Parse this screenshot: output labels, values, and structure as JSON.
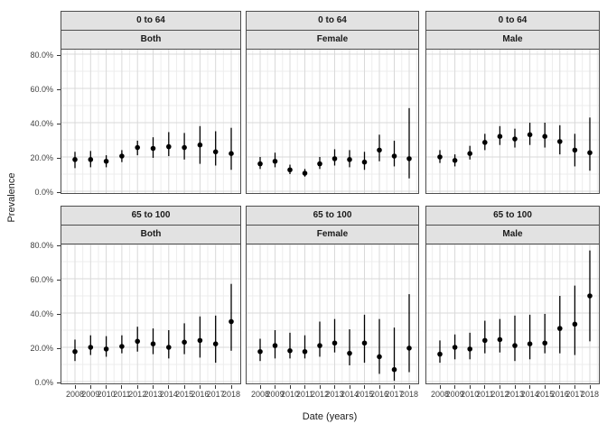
{
  "axis": {
    "y_title": "Prevalence",
    "x_title": "Date (years)",
    "y_tick_values": [
      0,
      20,
      40,
      60,
      80
    ],
    "y_tick_labels": [
      "0.0%",
      "20.0%",
      "40.0%",
      "60.0%",
      "80.0%"
    ],
    "y_minor_values": [
      10,
      30,
      50,
      70
    ]
  },
  "colors": {
    "point": "#000000",
    "error_bar": "#000000",
    "grid_major": "#d9d9d9",
    "grid_minor": "#ededed",
    "panel_border": "#4d4d4d",
    "strip_bg": "#e2e2e2",
    "tick": "#333333"
  },
  "chart_data": {
    "type": "scatter",
    "title": "",
    "xlabel": "Date (years)",
    "ylabel": "Prevalence",
    "x": [
      2008,
      2009,
      2010,
      2011,
      2012,
      2013,
      2014,
      2015,
      2016,
      2017,
      2018
    ],
    "ylim": [
      0,
      84
    ],
    "grid": true,
    "legend": "none",
    "facet_rows": [
      "0 to 64",
      "65 to 100"
    ],
    "facet_cols": [
      "Both",
      "Female",
      "Male"
    ],
    "units": "percent",
    "panels": [
      {
        "row_label": "0 to 64",
        "col_label": "Both",
        "values": [
          18.5,
          18.5,
          17.5,
          20.5,
          25.5,
          25,
          26,
          25.5,
          27,
          23,
          22
        ],
        "ci_low": [
          13.5,
          14,
          14,
          17,
          21,
          19.5,
          20.5,
          18.5,
          16,
          15,
          12.5
        ],
        "ci_high": [
          23,
          23.5,
          21,
          24,
          29.5,
          31.5,
          34.5,
          34,
          38,
          35,
          37
        ]
      },
      {
        "row_label": "0 to 64",
        "col_label": "Female",
        "values": [
          16,
          17.5,
          12.5,
          10.5,
          16,
          19,
          18.5,
          17,
          24,
          20.5,
          19
        ],
        "ci_low": [
          13,
          14,
          10,
          8.5,
          13,
          15,
          14,
          12.5,
          17.5,
          14.5,
          7.5
        ],
        "ci_high": [
          20,
          22.5,
          15.5,
          13,
          20,
          24.5,
          24,
          23,
          33,
          29.5,
          48.5
        ]
      },
      {
        "row_label": "0 to 64",
        "col_label": "Male",
        "values": [
          20,
          18,
          22,
          28.5,
          32,
          30.5,
          33,
          32,
          29,
          24,
          22.5
        ],
        "ci_low": [
          16.5,
          14.5,
          18.5,
          24,
          27,
          25.5,
          27,
          25.5,
          21.5,
          14.5,
          12
        ],
        "ci_high": [
          24,
          21.5,
          26.5,
          33.5,
          38,
          36.5,
          40,
          40,
          38.5,
          33.5,
          43
        ]
      },
      {
        "row_label": "65 to 100",
        "col_label": "Both",
        "values": [
          17.5,
          20,
          19,
          20.5,
          23.5,
          22,
          20,
          23,
          24,
          22,
          35
        ],
        "ci_low": [
          12,
          15.5,
          14.5,
          16.5,
          17.5,
          16,
          13.5,
          16,
          14,
          11,
          18
        ],
        "ci_high": [
          24.5,
          27,
          26.5,
          27,
          32,
          31,
          30,
          34,
          38,
          38.5,
          57
        ]
      },
      {
        "row_label": "65 to 100",
        "col_label": "Female",
        "values": [
          17.5,
          21,
          18,
          17.5,
          21,
          22.5,
          16.5,
          22.5,
          14.5,
          7,
          19.5
        ],
        "ci_low": [
          12,
          13.5,
          13.5,
          13.5,
          14.5,
          17,
          9.5,
          11,
          4.5,
          0.5,
          5.5
        ],
        "ci_high": [
          25,
          30,
          28.5,
          27,
          35,
          36.5,
          30.5,
          39,
          36.5,
          31.5,
          51
        ]
      },
      {
        "row_label": "65 to 100",
        "col_label": "Male",
        "values": [
          16,
          20,
          19,
          24,
          24.5,
          21,
          22,
          22.5,
          31,
          33.5,
          50
        ],
        "ci_low": [
          11,
          13,
          13,
          16.5,
          17,
          12,
          13,
          16.5,
          16.5,
          15.5,
          23.5
        ],
        "ci_high": [
          24,
          27.5,
          28.5,
          35.5,
          36.5,
          38.5,
          39,
          39.5,
          50,
          56,
          76.5
        ]
      }
    ]
  }
}
